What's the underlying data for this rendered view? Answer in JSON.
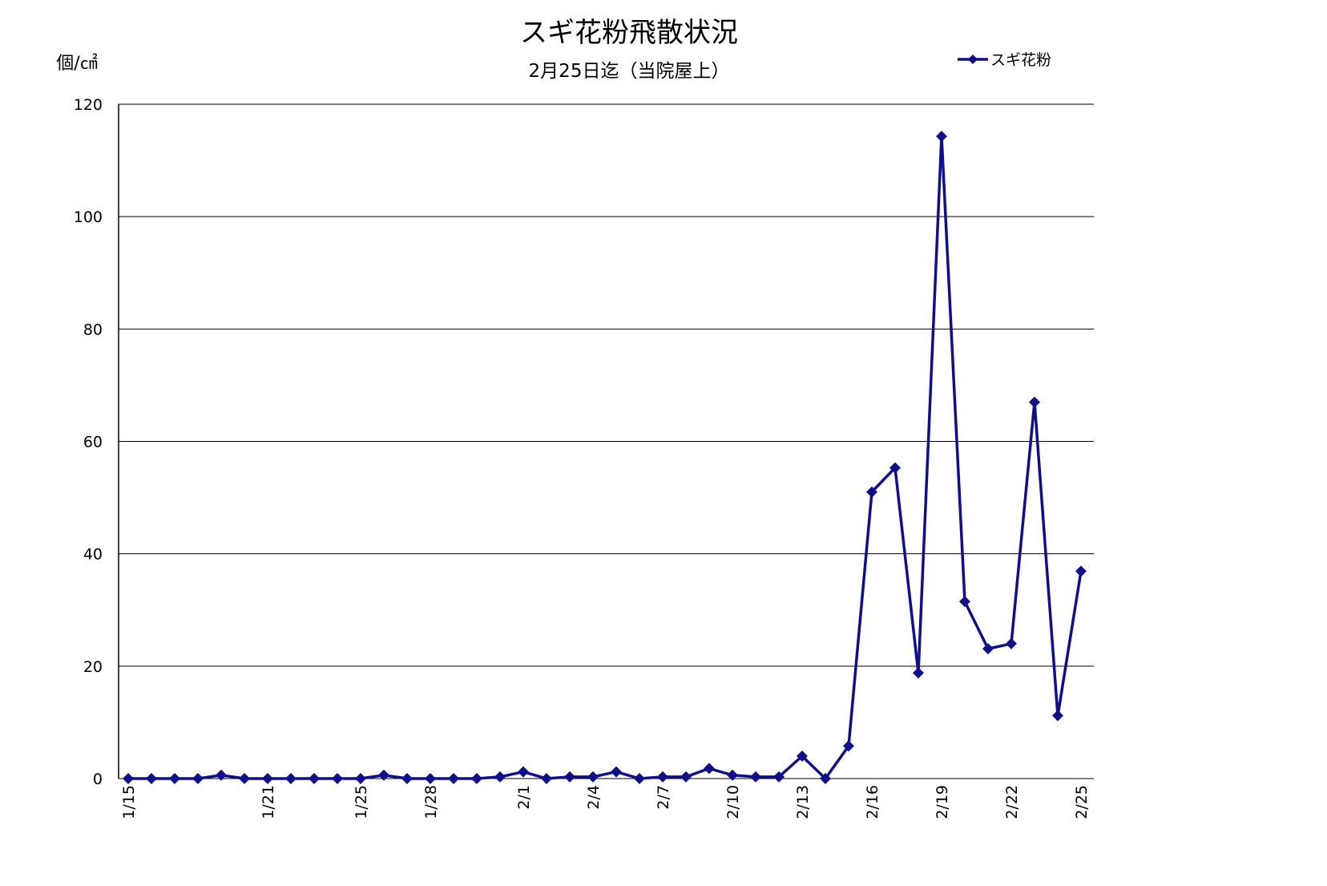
{
  "chart_data": {
    "type": "line",
    "title": "スギ花粉飛散状況",
    "subtitle": "2月25日迄（当院屋上）",
    "y_label": "個/㎠",
    "categories": [
      "1/15",
      null,
      null,
      null,
      null,
      null,
      "1/21",
      null,
      null,
      null,
      "1/25",
      null,
      null,
      "1/28",
      null,
      null,
      null,
      "2/1",
      null,
      null,
      "2/4",
      null,
      null,
      "2/7",
      null,
      null,
      "2/10",
      null,
      null,
      "2/13",
      null,
      null,
      "2/16",
      null,
      null,
      "2/19",
      null,
      null,
      "2/22",
      null,
      null,
      "2/25"
    ],
    "series": [
      {
        "name": "スギ花粉",
        "color": "#0f0f8c",
        "values": [
          0,
          0,
          0,
          0,
          0.6,
          0,
          0,
          0,
          0,
          0,
          0,
          0.6,
          0,
          0,
          0,
          0,
          0.3,
          1.2,
          0,
          0.3,
          0.3,
          1.2,
          0,
          0.3,
          0.3,
          1.8,
          0.6,
          0.3,
          0.3,
          4.0,
          0,
          5.8,
          51,
          55.3,
          18.8,
          114.3,
          31.5,
          23.1,
          24,
          67,
          11.2,
          36.9
        ]
      }
    ],
    "ylim": [
      0,
      120
    ],
    "yticks": [
      0,
      20,
      40,
      60,
      80,
      100,
      120
    ],
    "grid": true,
    "legend": "top-right"
  }
}
